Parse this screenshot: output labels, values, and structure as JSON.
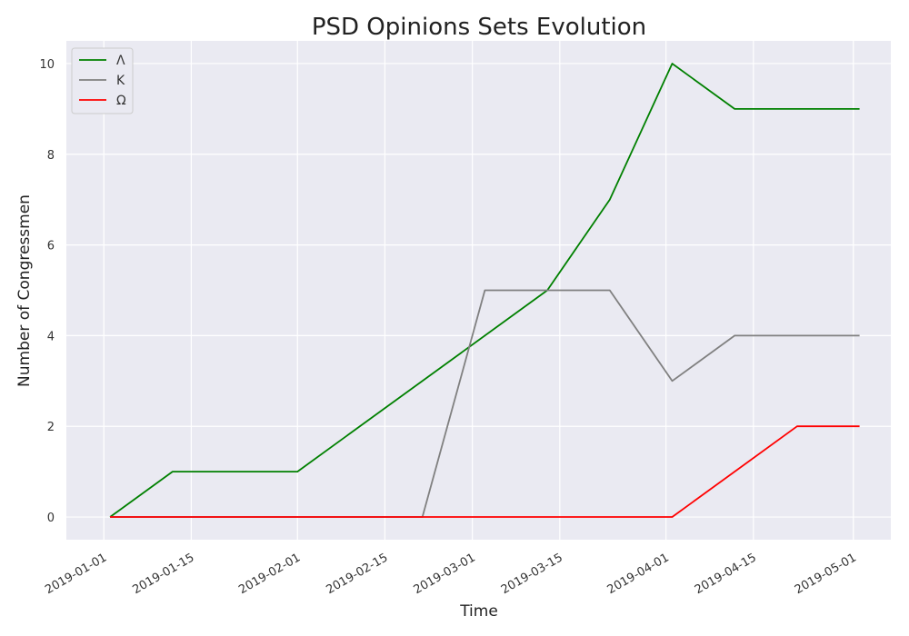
{
  "chart_data": {
    "type": "line",
    "title": "PSD Opinions Sets Evolution",
    "xlabel": "Time",
    "ylabel": "Number of Congressmen",
    "x_ticks": [
      "2019-01-01",
      "2019-01-15",
      "2019-02-01",
      "2019-02-15",
      "2019-03-01",
      "2019-03-15",
      "2019-04-01",
      "2019-04-15",
      "2019-05-01"
    ],
    "xlim": [
      "2018-12-26",
      "2019-05-07"
    ],
    "y_ticks": [
      0,
      2,
      4,
      6,
      8,
      10
    ],
    "ylim": [
      -0.5,
      10.5
    ],
    "grid": true,
    "legend_position": "top-left",
    "background_color": "#eaeaf2",
    "series": [
      {
        "name": "Λ",
        "color": "#008000",
        "points": [
          [
            "2019-01-02",
            0
          ],
          [
            "2019-01-12",
            1
          ],
          [
            "2019-02-01",
            1
          ],
          [
            "2019-03-13",
            5
          ],
          [
            "2019-03-23",
            7
          ],
          [
            "2019-04-02",
            10
          ],
          [
            "2019-04-12",
            9
          ],
          [
            "2019-05-02",
            9
          ]
        ]
      },
      {
        "name": "K",
        "color": "#808080",
        "points": [
          [
            "2019-01-02",
            0
          ],
          [
            "2019-02-21",
            0
          ],
          [
            "2019-03-03",
            5
          ],
          [
            "2019-03-23",
            5
          ],
          [
            "2019-04-02",
            3
          ],
          [
            "2019-04-12",
            4
          ],
          [
            "2019-05-02",
            4
          ]
        ]
      },
      {
        "name": "Ω",
        "color": "#ff0000",
        "points": [
          [
            "2019-01-02",
            0
          ],
          [
            "2019-04-02",
            0
          ],
          [
            "2019-04-22",
            2
          ],
          [
            "2019-05-02",
            2
          ]
        ]
      }
    ]
  }
}
